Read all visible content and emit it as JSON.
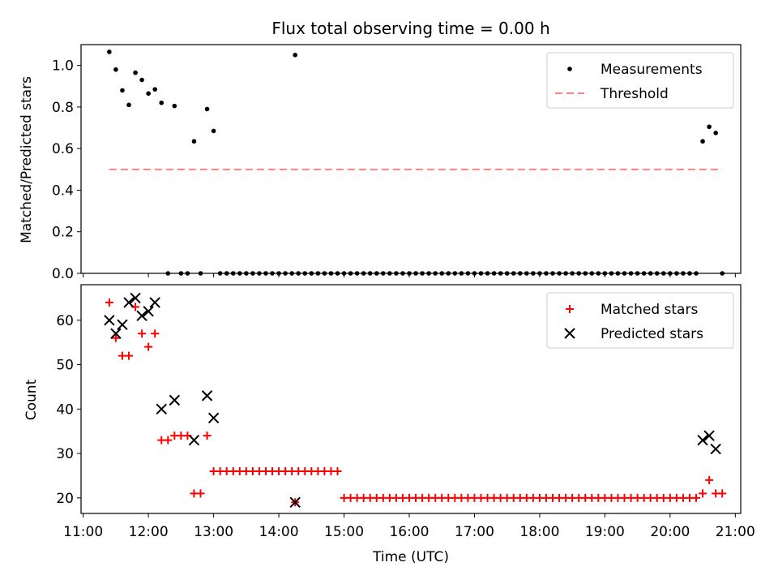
{
  "chart_data": [
    {
      "type": "scatter",
      "title": "Flux total observing time = 0.00 h",
      "xlabel": "",
      "ylabel": "Matched/Predicted stars",
      "xlim": [
        "10:58",
        "21:05"
      ],
      "ylim": [
        0.0,
        1.1
      ],
      "yticks": [
        "0.0",
        "0.2",
        "0.4",
        "0.6",
        "0.8",
        "1.0"
      ],
      "grid": false,
      "legend_placement": "upper right",
      "legend": [
        "Measurements",
        "Threshold"
      ],
      "series": [
        {
          "name": "Measurements",
          "color": "#000000",
          "marker": "dot",
          "points": [
            [
              "11:24",
              1.065
            ],
            [
              "11:30",
              0.98
            ],
            [
              "11:36",
              0.88
            ],
            [
              "11:42",
              0.81
            ],
            [
              "11:48",
              0.965
            ],
            [
              "11:54",
              0.93
            ],
            [
              "12:00",
              0.865
            ],
            [
              "12:06",
              0.885
            ],
            [
              "12:12",
              0.82
            ],
            [
              "12:18",
              0.0
            ],
            [
              "12:24",
              0.805
            ],
            [
              "12:30",
              0.0
            ],
            [
              "12:36",
              0.0
            ],
            [
              "12:42",
              0.635
            ],
            [
              "12:48",
              0.0
            ],
            [
              "12:54",
              0.79
            ],
            [
              "13:00",
              0.685
            ],
            [
              "13:06",
              0.0
            ],
            [
              "13:12",
              0.0
            ],
            [
              "13:18",
              0.0
            ],
            [
              "13:24",
              0.0
            ],
            [
              "13:30",
              0.0
            ],
            [
              "13:36",
              0.0
            ],
            [
              "13:42",
              0.0
            ],
            [
              "13:48",
              0.0
            ],
            [
              "13:54",
              0.0
            ],
            [
              "14:00",
              0.0
            ],
            [
              "14:06",
              0.0
            ],
            [
              "14:12",
              0.0
            ],
            [
              "14:18",
              0.0
            ],
            [
              "14:24",
              0.0
            ],
            [
              "14:30",
              0.0
            ],
            [
              "14:36",
              0.0
            ],
            [
              "14:42",
              0.0
            ],
            [
              "14:48",
              0.0
            ],
            [
              "14:54",
              0.0
            ],
            [
              "14:15",
              1.05
            ],
            [
              "15:00",
              0.0
            ],
            [
              "15:06",
              0.0
            ],
            [
              "15:12",
              0.0
            ],
            [
              "15:18",
              0.0
            ],
            [
              "15:24",
              0.0
            ],
            [
              "15:30",
              0.0
            ],
            [
              "15:36",
              0.0
            ],
            [
              "15:42",
              0.0
            ],
            [
              "15:48",
              0.0
            ],
            [
              "15:54",
              0.0
            ],
            [
              "16:00",
              0.0
            ],
            [
              "16:06",
              0.0
            ],
            [
              "16:12",
              0.0
            ],
            [
              "16:18",
              0.0
            ],
            [
              "16:24",
              0.0
            ],
            [
              "16:30",
              0.0
            ],
            [
              "16:36",
              0.0
            ],
            [
              "16:42",
              0.0
            ],
            [
              "16:48",
              0.0
            ],
            [
              "16:54",
              0.0
            ],
            [
              "17:00",
              0.0
            ],
            [
              "17:06",
              0.0
            ],
            [
              "17:12",
              0.0
            ],
            [
              "17:18",
              0.0
            ],
            [
              "17:24",
              0.0
            ],
            [
              "17:30",
              0.0
            ],
            [
              "17:36",
              0.0
            ],
            [
              "17:42",
              0.0
            ],
            [
              "17:48",
              0.0
            ],
            [
              "17:54",
              0.0
            ],
            [
              "18:00",
              0.0
            ],
            [
              "18:06",
              0.0
            ],
            [
              "18:12",
              0.0
            ],
            [
              "18:18",
              0.0
            ],
            [
              "18:24",
              0.0
            ],
            [
              "18:30",
              0.0
            ],
            [
              "18:36",
              0.0
            ],
            [
              "18:42",
              0.0
            ],
            [
              "18:48",
              0.0
            ],
            [
              "18:54",
              0.0
            ],
            [
              "19:00",
              0.0
            ],
            [
              "19:06",
              0.0
            ],
            [
              "19:12",
              0.0
            ],
            [
              "19:18",
              0.0
            ],
            [
              "19:24",
              0.0
            ],
            [
              "19:30",
              0.0
            ],
            [
              "19:36",
              0.0
            ],
            [
              "19:42",
              0.0
            ],
            [
              "19:48",
              0.0
            ],
            [
              "19:54",
              0.0
            ],
            [
              "20:00",
              0.0
            ],
            [
              "20:06",
              0.0
            ],
            [
              "20:12",
              0.0
            ],
            [
              "20:18",
              0.0
            ],
            [
              "20:24",
              0.0
            ],
            [
              "20:30",
              0.635
            ],
            [
              "20:36",
              0.705
            ],
            [
              "20:42",
              0.675
            ],
            [
              "20:48",
              0.0
            ]
          ]
        },
        {
          "name": "Threshold",
          "color": "#ff8080",
          "style": "dashed",
          "points": [
            [
              "11:24",
              0.5
            ],
            [
              "20:48",
              0.5
            ]
          ]
        }
      ]
    },
    {
      "type": "scatter",
      "title": "",
      "xlabel": "Time (UTC)",
      "ylabel": "Count",
      "xlim": [
        "10:58",
        "21:05"
      ],
      "ylim": [
        16.5,
        68
      ],
      "yticks": [
        "20",
        "30",
        "40",
        "50",
        "60"
      ],
      "xticks": [
        "11:00",
        "12:00",
        "13:00",
        "14:00",
        "15:00",
        "16:00",
        "17:00",
        "18:00",
        "19:00",
        "20:00",
        "21:00"
      ],
      "grid": false,
      "legend_placement": "upper right",
      "legend": [
        "Matched stars",
        "Predicted stars"
      ],
      "series": [
        {
          "name": "Matched stars",
          "color": "#ff0000",
          "marker": "plus",
          "points": [
            [
              "11:24",
              64
            ],
            [
              "11:30",
              56
            ],
            [
              "11:36",
              52
            ],
            [
              "11:42",
              52
            ],
            [
              "11:48",
              63
            ],
            [
              "11:54",
              57
            ],
            [
              "12:00",
              54
            ],
            [
              "12:06",
              57
            ],
            [
              "12:12",
              33
            ],
            [
              "12:18",
              33
            ],
            [
              "12:24",
              34
            ],
            [
              "12:30",
              34
            ],
            [
              "12:36",
              34
            ],
            [
              "12:42",
              21
            ],
            [
              "12:48",
              21
            ],
            [
              "12:54",
              34
            ],
            [
              "13:00",
              26
            ],
            [
              "13:06",
              26
            ],
            [
              "13:12",
              26
            ],
            [
              "13:18",
              26
            ],
            [
              "13:24",
              26
            ],
            [
              "13:30",
              26
            ],
            [
              "13:36",
              26
            ],
            [
              "13:42",
              26
            ],
            [
              "13:48",
              26
            ],
            [
              "13:54",
              26
            ],
            [
              "14:00",
              26
            ],
            [
              "14:06",
              26
            ],
            [
              "14:12",
              26
            ],
            [
              "14:18",
              26
            ],
            [
              "14:24",
              26
            ],
            [
              "14:30",
              26
            ],
            [
              "14:36",
              26
            ],
            [
              "14:42",
              26
            ],
            [
              "14:48",
              26
            ],
            [
              "14:54",
              26
            ],
            [
              "14:15",
              19
            ],
            [
              "15:00",
              20
            ],
            [
              "15:06",
              20
            ],
            [
              "15:12",
              20
            ],
            [
              "15:18",
              20
            ],
            [
              "15:24",
              20
            ],
            [
              "15:30",
              20
            ],
            [
              "15:36",
              20
            ],
            [
              "15:42",
              20
            ],
            [
              "15:48",
              20
            ],
            [
              "15:54",
              20
            ],
            [
              "16:00",
              20
            ],
            [
              "16:06",
              20
            ],
            [
              "16:12",
              20
            ],
            [
              "16:18",
              20
            ],
            [
              "16:24",
              20
            ],
            [
              "16:30",
              20
            ],
            [
              "16:36",
              20
            ],
            [
              "16:42",
              20
            ],
            [
              "16:48",
              20
            ],
            [
              "16:54",
              20
            ],
            [
              "17:00",
              20
            ],
            [
              "17:06",
              20
            ],
            [
              "17:12",
              20
            ],
            [
              "17:18",
              20
            ],
            [
              "17:24",
              20
            ],
            [
              "17:30",
              20
            ],
            [
              "17:36",
              20
            ],
            [
              "17:42",
              20
            ],
            [
              "17:48",
              20
            ],
            [
              "17:54",
              20
            ],
            [
              "18:00",
              20
            ],
            [
              "18:06",
              20
            ],
            [
              "18:12",
              20
            ],
            [
              "18:18",
              20
            ],
            [
              "18:24",
              20
            ],
            [
              "18:30",
              20
            ],
            [
              "18:36",
              20
            ],
            [
              "18:42",
              20
            ],
            [
              "18:48",
              20
            ],
            [
              "18:54",
              20
            ],
            [
              "19:00",
              20
            ],
            [
              "19:06",
              20
            ],
            [
              "19:12",
              20
            ],
            [
              "19:18",
              20
            ],
            [
              "19:24",
              20
            ],
            [
              "19:30",
              20
            ],
            [
              "19:36",
              20
            ],
            [
              "19:42",
              20
            ],
            [
              "19:48",
              20
            ],
            [
              "19:54",
              20
            ],
            [
              "20:00",
              20
            ],
            [
              "20:06",
              20
            ],
            [
              "20:12",
              20
            ],
            [
              "20:18",
              20
            ],
            [
              "20:24",
              20
            ],
            [
              "20:30",
              21
            ],
            [
              "20:36",
              24
            ],
            [
              "20:42",
              21
            ],
            [
              "20:48",
              21
            ]
          ]
        },
        {
          "name": "Predicted stars",
          "color": "#000000",
          "marker": "x",
          "points": [
            [
              "11:24",
              60
            ],
            [
              "11:30",
              57
            ],
            [
              "11:36",
              59
            ],
            [
              "11:42",
              64
            ],
            [
              "11:48",
              65
            ],
            [
              "11:54",
              61
            ],
            [
              "12:00",
              62
            ],
            [
              "12:06",
              64
            ],
            [
              "12:12",
              40
            ],
            [
              "12:24",
              42
            ],
            [
              "12:42",
              33
            ],
            [
              "12:54",
              43
            ],
            [
              "13:00",
              38
            ],
            [
              "14:15",
              19
            ],
            [
              "20:30",
              33
            ],
            [
              "20:36",
              34
            ],
            [
              "20:42",
              31
            ]
          ]
        }
      ]
    }
  ]
}
